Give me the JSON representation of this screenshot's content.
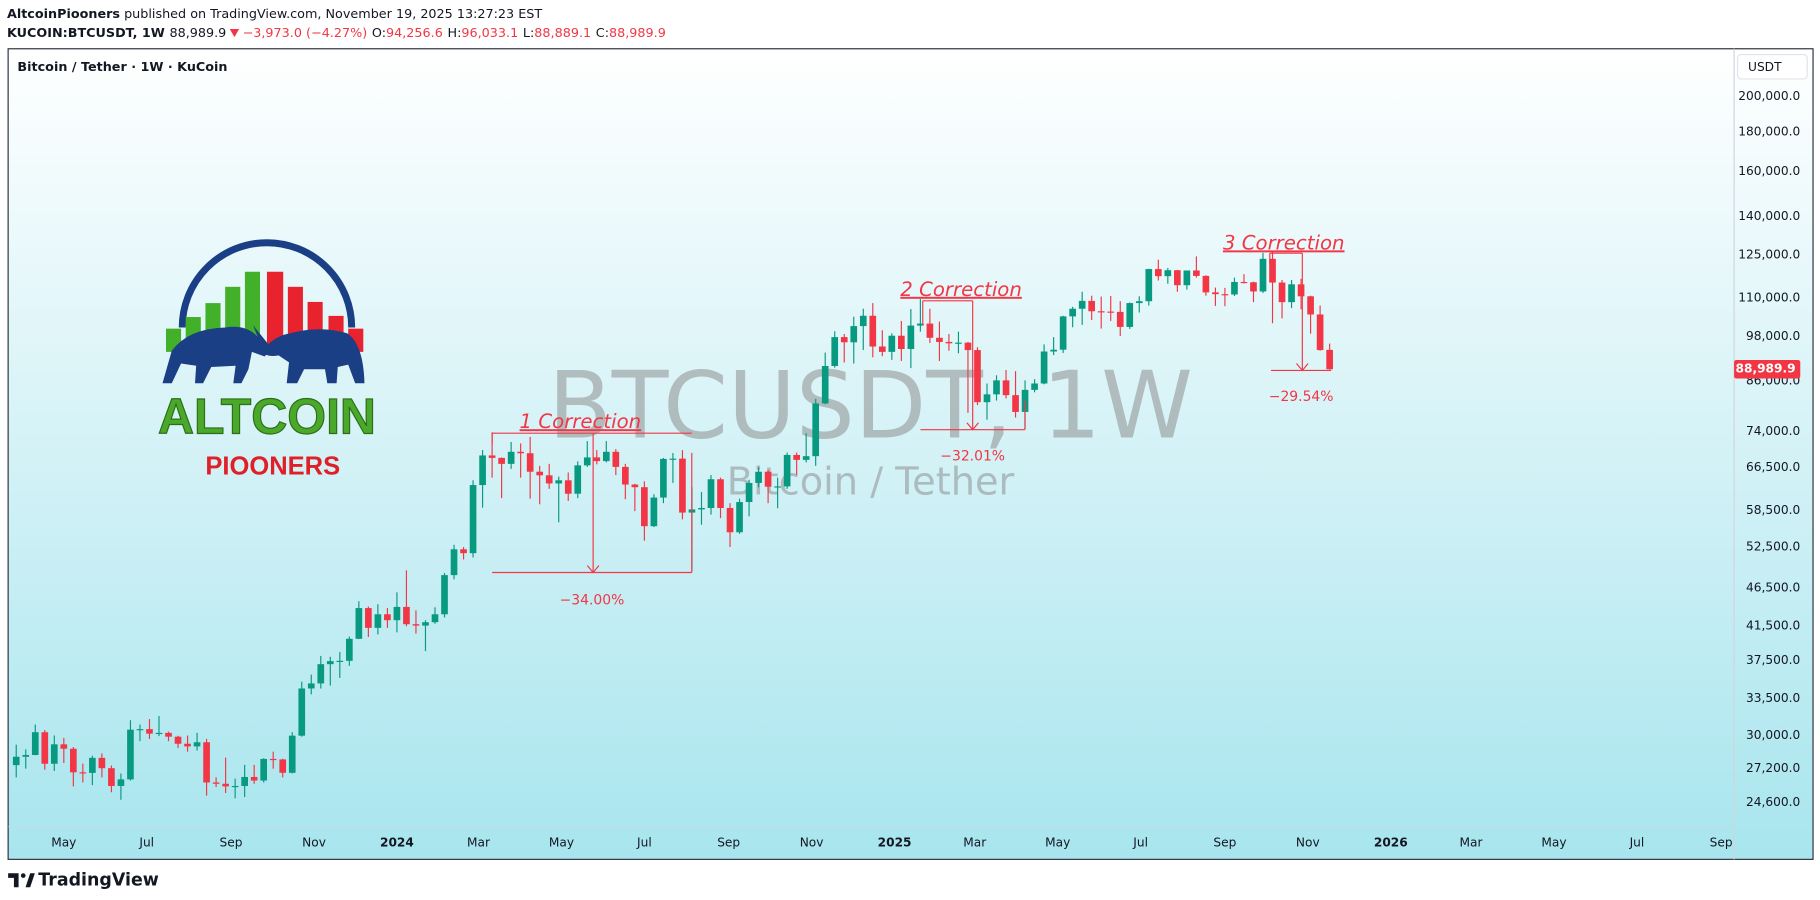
{
  "header": {
    "author": "AltcoinPiooners",
    "published": "published on TradingView.com, November 19, 2025 13:27:23 EST",
    "symbol": "KUCOIN:BTCUSDT, 1W",
    "last": "88,989.9",
    "change": "−3,973.0 (−4.27%)",
    "ohlc": [
      {
        "label": "O:",
        "value": "94,256.6"
      },
      {
        "label": "H:",
        "value": "96,033.1"
      },
      {
        "label": "L:",
        "value": "88,889.1"
      },
      {
        "label": "C:",
        "value": "88,989.9"
      }
    ]
  },
  "legend_title": "Bitcoin / Tether · 1W · KuCoin",
  "currency": "USDT",
  "watermark": {
    "symbol": "BTCUSDT, 1W",
    "description": "Bitcoin / Tether"
  },
  "logo": {
    "line1": "ALTCOIN",
    "line2": "PIOONERS"
  },
  "annotations": [
    {
      "title": "1 Correction",
      "change": "−34.00%"
    },
    {
      "title": "2 Correction",
      "change": "−32.01%"
    },
    {
      "title": "3 Correction",
      "change": "−29.54%"
    }
  ],
  "footer": "TradingView",
  "chart_data": {
    "type": "candlestick",
    "log_scale": true,
    "grid": false,
    "up_color": "#089981",
    "down_color": "#f23645",
    "xlim": [
      -0.73,
      180.5
    ],
    "xticks": [
      {
        "value": 5,
        "label": "May"
      },
      {
        "value": 13.71,
        "label": "Jul"
      },
      {
        "value": 22.57,
        "label": "Sep"
      },
      {
        "value": 31.29,
        "label": "Nov"
      },
      {
        "value": 40,
        "label": "2024"
      },
      {
        "value": 48.57,
        "label": "Mar"
      },
      {
        "value": 57.29,
        "label": "May"
      },
      {
        "value": 66,
        "label": "Jul"
      },
      {
        "value": 74.86,
        "label": "Sep"
      },
      {
        "value": 83.57,
        "label": "Nov"
      },
      {
        "value": 92.29,
        "label": "2025"
      },
      {
        "value": 100.71,
        "label": "Mar"
      },
      {
        "value": 109.43,
        "label": "May"
      },
      {
        "value": 118.14,
        "label": "Jul"
      },
      {
        "value": 127,
        "label": "Sep"
      },
      {
        "value": 135.71,
        "label": "Nov"
      },
      {
        "value": 144.43,
        "label": "2026"
      },
      {
        "value": 152.86,
        "label": "Mar"
      },
      {
        "value": 161.57,
        "label": "May"
      },
      {
        "value": 170.29,
        "label": "Jul"
      },
      {
        "value": 179.14,
        "label": "Sep"
      }
    ],
    "ylim": [
      22880,
      230380
    ],
    "yticks": [
      {
        "value": 24600,
        "label": "24,600.0"
      },
      {
        "value": 27200,
        "label": "27,200.0"
      },
      {
        "value": 30000,
        "label": "30,000.0"
      },
      {
        "value": 33500,
        "label": "33,500.0"
      },
      {
        "value": 37500,
        "label": "37,500.0"
      },
      {
        "value": 41500,
        "label": "41,500.0"
      },
      {
        "value": 46500,
        "label": "46,500.0"
      },
      {
        "value": 52500,
        "label": "52,500.0"
      },
      {
        "value": 58500,
        "label": "58,500.0"
      },
      {
        "value": 66500,
        "label": "66,500.0"
      },
      {
        "value": 74000,
        "label": "74,000.0"
      },
      {
        "value": 86000,
        "label": "86,000.0"
      },
      {
        "value": 98000,
        "label": "98,000.0"
      },
      {
        "value": 110000,
        "label": "110,000.0"
      },
      {
        "value": 125000,
        "label": "125,000.0"
      },
      {
        "value": 140000,
        "label": "140,000.0"
      },
      {
        "value": 160000,
        "label": "160,000.0"
      },
      {
        "value": 180000,
        "label": "180,000.0"
      },
      {
        "value": 200000,
        "label": "200,000.0"
      }
    ],
    "price_label": {
      "value": 88989.9,
      "label": "88,989.9"
    },
    "open": [
      27480,
      28170,
      28320,
      30300,
      27590,
      29230,
      28850,
      26900,
      26850,
      28080,
      27230,
      25830,
      26340,
      30530,
      30580,
      30170,
      30240,
      29900,
      29280,
      29050,
      29410,
      26100,
      26000,
      25800,
      25830,
      26530,
      26250,
      27990,
      27950,
      26860,
      29990,
      34500,
      35020,
      37080,
      37420,
      37450,
      39980,
      43800,
      41300,
      43000,
      42250,
      43950,
      41750,
      41580,
      42000,
      43000,
      48300,
      52150,
      51550,
      63100,
      68900,
      68400,
      67200,
      69650,
      69350,
      65650,
      64950,
      63400,
      64000,
      61500,
      66900,
      68500,
      67750,
      69650,
      66600,
      63200,
      62700,
      55850,
      60800,
      68200,
      68250,
      58150,
      58700,
      58950,
      64200,
      58950,
      54850,
      60000,
      63500,
      65650,
      62800,
      62850,
      69000,
      68000,
      68750,
      80400,
      89850,
      97900,
      96400,
      101150,
      104300,
      95200,
      93700,
      98300,
      94500,
      101300,
      101900,
      97700,
      96500,
      96100,
      96300,
      94200,
      80700,
      82600,
      86100,
      82400,
      78400,
      83700,
      85300,
      93800,
      94300,
      104100,
      106500,
      109000,
      105700,
      105600,
      105500,
      100900,
      108300,
      108900,
      119800,
      117300,
      119400,
      114200,
      119300,
      117400,
      111800,
      111200,
      111100,
      115300,
      115200,
      112100,
      123500,
      115100,
      108600,
      114500,
      110500,
      104700,
      94256.6
    ],
    "high": [
      29200,
      28800,
      31000,
      30500,
      30000,
      29800,
      29000,
      27600,
      28250,
      28450,
      27450,
      26800,
      31400,
      31000,
      31500,
      31800,
      30350,
      29980,
      30000,
      30250,
      29700,
      26500,
      28100,
      26400,
      27500,
      27500,
      28050,
      28600,
      28000,
      30300,
      35200,
      35950,
      38000,
      37900,
      38450,
      40250,
      44700,
      44000,
      44300,
      43800,
      45900,
      49000,
      43500,
      42250,
      43900,
      48600,
      52850,
      52500,
      64000,
      70000,
      73800,
      68500,
      71700,
      71400,
      72800,
      66800,
      67200,
      64700,
      65500,
      67700,
      71900,
      70000,
      71900,
      70200,
      67200,
      63350,
      63800,
      61400,
      68400,
      69400,
      70000,
      62700,
      61800,
      65000,
      64500,
      59800,
      60600,
      64100,
      66500,
      66000,
      64500,
      69500,
      69500,
      73600,
      81500,
      93500,
      99600,
      98800,
      104000,
      106500,
      108300,
      99900,
      99000,
      102700,
      106400,
      109600,
      106500,
      102500,
      98800,
      99500,
      96500,
      95000,
      85300,
      87400,
      88800,
      88500,
      86100,
      86400,
      95800,
      97900,
      104300,
      107100,
      112000,
      110700,
      110400,
      110600,
      108900,
      108500,
      110500,
      119900,
      123200,
      120200,
      119500,
      119300,
      124400,
      117600,
      113400,
      113300,
      116800,
      118000,
      115400,
      125700,
      126200,
      116000,
      116000,
      116400,
      110700,
      107500,
      96033.1
    ],
    "low": [
      26500,
      27200,
      28300,
      27100,
      27000,
      27650,
      25800,
      26100,
      25900,
      26500,
      25350,
      24800,
      26250,
      29500,
      29700,
      29950,
      29500,
      28900,
      28600,
      28700,
      25100,
      25750,
      25300,
      24900,
      25000,
      26000,
      26100,
      27200,
      26500,
      26800,
      29900,
      33900,
      34500,
      34800,
      35600,
      36900,
      39950,
      40200,
      40500,
      41300,
      40750,
      41500,
      40600,
      38550,
      41800,
      42600,
      47700,
      50600,
      50900,
      59000,
      64500,
      60700,
      66200,
      64500,
      60600,
      59600,
      62400,
      56500,
      60200,
      60700,
      66600,
      67100,
      67500,
      65000,
      60500,
      58400,
      53500,
      55700,
      59800,
      63500,
      57000,
      49000,
      56100,
      57800,
      57200,
      52500,
      54600,
      57500,
      62700,
      59800,
      58900,
      62400,
      65000,
      67500,
      66800,
      80200,
      89400,
      90800,
      90500,
      94200,
      92200,
      92500,
      91500,
      91200,
      89300,
      99500,
      96200,
      91200,
      94000,
      93300,
      78200,
      80000,
      76600,
      81100,
      81600,
      77100,
      74500,
      83100,
      85100,
      92800,
      93400,
      100800,
      101500,
      103000,
      100400,
      102700,
      98200,
      100300,
      105300,
      107500,
      115800,
      114700,
      112000,
      112700,
      116800,
      110700,
      107400,
      107300,
      110600,
      114800,
      108600,
      111600,
      102000,
      103500,
      106700,
      106300,
      98900,
      94000,
      88889.1
    ],
    "close": [
      28170,
      28320,
      30300,
      27590,
      29230,
      28850,
      26900,
      26850,
      28080,
      27230,
      25830,
      26340,
      30530,
      30580,
      30170,
      30240,
      29900,
      29280,
      29050,
      29410,
      26100,
      26000,
      25800,
      25830,
      26530,
      26250,
      27990,
      27950,
      26860,
      29990,
      34500,
      35020,
      37080,
      37420,
      37450,
      39980,
      43800,
      41300,
      43000,
      42250,
      43950,
      41750,
      41580,
      42000,
      43000,
      48300,
      52150,
      51550,
      63100,
      68900,
      68400,
      67200,
      69650,
      69350,
      65650,
      64950,
      63400,
      64000,
      61500,
      66900,
      68500,
      67750,
      69650,
      66600,
      63200,
      62700,
      55850,
      60800,
      68200,
      68250,
      58150,
      58700,
      58950,
      64200,
      58950,
      54850,
      60000,
      63500,
      65650,
      62800,
      62850,
      69000,
      68000,
      68750,
      80400,
      89850,
      97900,
      96400,
      101150,
      104300,
      95200,
      93700,
      98300,
      94500,
      101300,
      101900,
      97700,
      96500,
      96100,
      96300,
      94200,
      80700,
      82600,
      86100,
      82400,
      78400,
      83700,
      85300,
      93800,
      94300,
      104100,
      106500,
      109000,
      105700,
      105600,
      105500,
      100900,
      108300,
      108900,
      119800,
      117300,
      119400,
      114200,
      119300,
      117400,
      111800,
      111200,
      111100,
      115300,
      115200,
      112100,
      123500,
      115100,
      108600,
      114500,
      110500,
      104700,
      94200,
      88989.9
    ]
  }
}
